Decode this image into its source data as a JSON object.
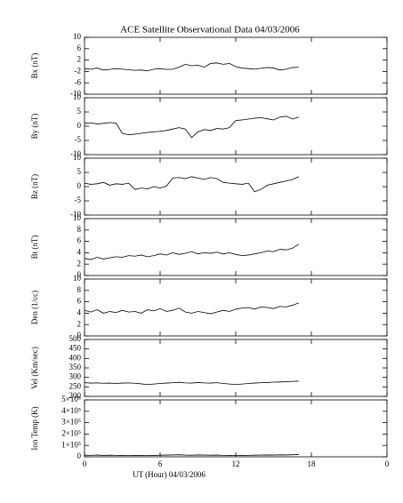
{
  "chart_data": [
    {
      "type": "line",
      "title": "ACE Satellite Observational Data   04/03/2006",
      "ylabel": "Bx (nT)",
      "xlim": [
        0,
        24
      ],
      "xticks": [
        0,
        6,
        12,
        18,
        {
          "value": 24,
          "label": "0"
        }
      ],
      "ylim": [
        -10,
        10
      ],
      "yticks": [
        -10,
        -6,
        -2,
        2,
        6,
        10
      ],
      "x": [
        0,
        0.5,
        1,
        1.5,
        2,
        2.5,
        3,
        3.5,
        4,
        4.5,
        5,
        5.5,
        6,
        6.5,
        7,
        7.5,
        8,
        8.5,
        9,
        9.5,
        10,
        10.5,
        11,
        11.5,
        12,
        12.5,
        13,
        13.5,
        14,
        14.5,
        15,
        15.5,
        16,
        16.5,
        17
      ],
      "series": [
        {
          "color": "#000000",
          "values": [
            -1,
            -1.2,
            -0.8,
            -1.5,
            -1.3,
            -1,
            -1.2,
            -1.4,
            -1.6,
            -1.5,
            -1.8,
            -1.2,
            -1,
            -1.3,
            -1.2,
            -0.5,
            0.5,
            0,
            0.2,
            -0.5,
            0.8,
            1,
            0.5,
            0.8,
            -0.3,
            -0.8,
            -1,
            -1.2,
            -0.9,
            -0.6,
            -0.8,
            -1.5,
            -1.2,
            -0.6,
            -0.5
          ]
        }
      ]
    },
    {
      "type": "line",
      "ylabel": "By (nT)",
      "xlim": [
        0,
        24
      ],
      "xticks": [
        0,
        6,
        12,
        18,
        {
          "value": 24,
          "label": "0"
        }
      ],
      "ylim": [
        -10,
        10
      ],
      "yticks": [
        -10,
        -5,
        0,
        5,
        10
      ],
      "x": [
        0,
        0.5,
        1,
        1.5,
        2,
        2.5,
        3,
        3.5,
        4,
        4.5,
        5,
        5.5,
        6,
        6.5,
        7,
        7.5,
        8,
        8.5,
        9,
        9.5,
        10,
        10.5,
        11,
        11.5,
        12,
        12.5,
        13,
        13.5,
        14,
        14.5,
        15,
        15.5,
        16,
        16.5,
        17
      ],
      "series": [
        {
          "color": "#000000",
          "values": [
            1,
            1.2,
            0.8,
            1,
            1.3,
            1.1,
            -2.5,
            -3,
            -2.8,
            -2.5,
            -2.2,
            -2,
            -1.8,
            -1.5,
            -1,
            -0.5,
            -1,
            -4,
            -2,
            -1.2,
            -1.5,
            -0.8,
            -1,
            -0.5,
            2,
            2.2,
            2.5,
            2.8,
            3,
            2.6,
            2.2,
            3.2,
            3.5,
            2.5,
            3.2
          ]
        }
      ]
    },
    {
      "type": "line",
      "ylabel": "Bz (nT)",
      "xlim": [
        0,
        24
      ],
      "xticks": [
        0,
        6,
        12,
        18,
        {
          "value": 24,
          "label": "0"
        }
      ],
      "ylim": [
        -10,
        10
      ],
      "yticks": [
        -10,
        -5,
        0,
        5,
        10
      ],
      "x": [
        0,
        0.5,
        1,
        1.5,
        2,
        2.5,
        3,
        3.5,
        4,
        4.5,
        5,
        5.5,
        6,
        6.5,
        7,
        7.5,
        8,
        8.5,
        9,
        9.5,
        10,
        10.5,
        11,
        11.5,
        12,
        12.5,
        13,
        13.5,
        14,
        14.5,
        15,
        15.5,
        16,
        16.5,
        17
      ],
      "series": [
        {
          "color": "#000000",
          "values": [
            1.2,
            0.8,
            1,
            1.5,
            0.5,
            1,
            0.8,
            1.2,
            -1,
            -0.5,
            -0.8,
            0,
            -0.5,
            0.2,
            3,
            3.2,
            2.8,
            3.5,
            3,
            2.5,
            3.2,
            2.8,
            1.5,
            1.2,
            1,
            0.8,
            1.2,
            -1.8,
            -1,
            0.5,
            1,
            1.5,
            2,
            2.5,
            3.5
          ]
        }
      ]
    },
    {
      "type": "line",
      "ylabel": "Bt (nT)",
      "xlim": [
        0,
        24
      ],
      "xticks": [
        0,
        6,
        12,
        18,
        {
          "value": 24,
          "label": "0"
        }
      ],
      "ylim": [
        0,
        10
      ],
      "yticks": [
        0,
        2,
        4,
        6,
        8,
        10
      ],
      "x": [
        0,
        0.5,
        1,
        1.5,
        2,
        2.5,
        3,
        3.5,
        4,
        4.5,
        5,
        5.5,
        6,
        6.5,
        7,
        7.5,
        8,
        8.5,
        9,
        9.5,
        10,
        10.5,
        11,
        11.5,
        12,
        12.5,
        13,
        13.5,
        14,
        14.5,
        15,
        15.5,
        16,
        16.5,
        17
      ],
      "series": [
        {
          "color": "#000000",
          "values": [
            3,
            2.8,
            3.2,
            2.9,
            3.1,
            3.3,
            3.2,
            3.5,
            3.4,
            3.6,
            3.3,
            3.5,
            3.8,
            3.6,
            4,
            3.7,
            3.9,
            4.2,
            3.8,
            4,
            3.9,
            4.1,
            3.8,
            4,
            3.7,
            3.5,
            3.6,
            3.8,
            4,
            4.3,
            4.2,
            4.6,
            4.5,
            4.8,
            5.5
          ]
        }
      ]
    },
    {
      "type": "line",
      "ylabel": "Den (1/cc)",
      "xlim": [
        0,
        24
      ],
      "xticks": [
        0,
        6,
        12,
        18,
        {
          "value": 24,
          "label": "0"
        }
      ],
      "ylim": [
        0,
        10
      ],
      "yticks": [
        0,
        2,
        4,
        6,
        8,
        10
      ],
      "x": [
        0,
        0.5,
        1,
        1.5,
        2,
        2.5,
        3,
        3.5,
        4,
        4.5,
        5,
        5.5,
        6,
        6.5,
        7,
        7.5,
        8,
        8.5,
        9,
        9.5,
        10,
        10.5,
        11,
        11.5,
        12,
        12.5,
        13,
        13.5,
        14,
        14.5,
        15,
        15.5,
        16,
        16.5,
        17
      ],
      "series": [
        {
          "color": "#000000",
          "values": [
            4.5,
            4.2,
            4.6,
            4,
            4.3,
            4.1,
            4.5,
            4.2,
            4.3,
            4,
            4.6,
            4.4,
            4.8,
            4.3,
            4.5,
            4.9,
            4.2,
            4,
            4.3,
            4.1,
            3.9,
            4.2,
            4.5,
            4.3,
            4.7,
            4.9,
            5,
            4.7,
            5.1,
            5,
            4.8,
            5.2,
            5.1,
            5.4,
            5.8
          ]
        }
      ]
    },
    {
      "type": "line",
      "ylabel": "Vel (Km/sec)",
      "xlim": [
        0,
        24
      ],
      "xticks": [
        0,
        6,
        12,
        18,
        {
          "value": 24,
          "label": "0"
        }
      ],
      "ylim": [
        200,
        500
      ],
      "yticks": [
        200,
        250,
        300,
        350,
        400,
        450,
        500
      ],
      "x": [
        0,
        0.5,
        1,
        1.5,
        2,
        2.5,
        3,
        3.5,
        4,
        4.5,
        5,
        5.5,
        6,
        6.5,
        7,
        7.5,
        8,
        8.5,
        9,
        9.5,
        10,
        10.5,
        11,
        11.5,
        12,
        12.5,
        13,
        13.5,
        14,
        14.5,
        15,
        15.5,
        16,
        16.5,
        17
      ],
      "series": [
        {
          "color": "#000000",
          "values": [
            272,
            270,
            271,
            269,
            270,
            268,
            270,
            271,
            269,
            266,
            262,
            265,
            268,
            270,
            272,
            274,
            271,
            270,
            273,
            271,
            270,
            272,
            268,
            265,
            262,
            265,
            268,
            270,
            272,
            273,
            275,
            276,
            277,
            279,
            280
          ]
        }
      ]
    },
    {
      "type": "line",
      "ylabel": "Ion Temp (K)",
      "xlabel": "UT (Hour)   04/03/2006",
      "xlim": [
        0,
        24
      ],
      "xticks": [
        0,
        6,
        12,
        18,
        {
          "value": 24,
          "label": "0"
        }
      ],
      "ylim": [
        0,
        500000
      ],
      "yticks": [
        0,
        {
          "value": 100000,
          "label": "1×10⁵"
        },
        {
          "value": 200000,
          "label": "2×10⁵"
        },
        {
          "value": 300000,
          "label": "3×10⁵"
        },
        {
          "value": 400000,
          "label": "4×10⁵"
        },
        {
          "value": 500000,
          "label": "5×10⁵"
        }
      ],
      "x": [
        0,
        0.5,
        1,
        1.5,
        2,
        2.5,
        3,
        3.5,
        4,
        4.5,
        5,
        5.5,
        6,
        6.5,
        7,
        7.5,
        8,
        8.5,
        9,
        9.5,
        10,
        10.5,
        11,
        11.5,
        12,
        12.5,
        13,
        13.5,
        14,
        14.5,
        15,
        15.5,
        16,
        16.5,
        17
      ],
      "series": [
        {
          "color": "#000000",
          "values": [
            14000,
            13000,
            15000,
            12000,
            14000,
            13000,
            12000,
            11000,
            12000,
            13000,
            11000,
            12000,
            14000,
            15000,
            16000,
            18000,
            15000,
            14000,
            16000,
            15000,
            14000,
            15000,
            13000,
            12000,
            11000,
            12000,
            13000,
            14000,
            15000,
            16000,
            15000,
            17000,
            16000,
            18000,
            20000
          ]
        }
      ]
    }
  ]
}
